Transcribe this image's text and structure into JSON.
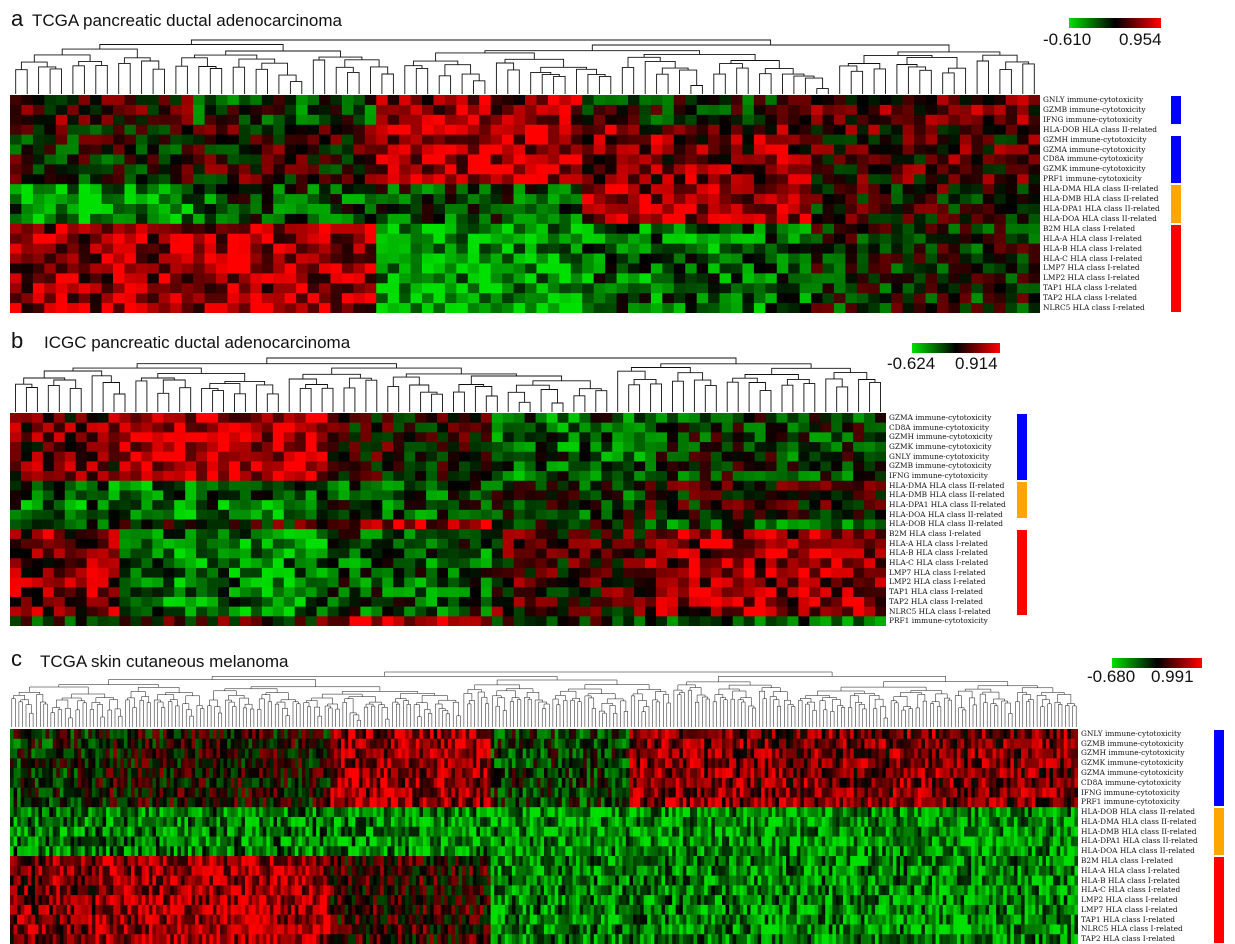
{
  "colors": {
    "low": "#00e000",
    "mid": "#000000",
    "high": "#ff0000",
    "group_cytotoxicity": "#0000ff",
    "group_hla_class_ii": "#ffa500",
    "group_hla_class_i": "#ff0000"
  },
  "chart_data": [
    {
      "type": "heatmap",
      "panel_letter": "a",
      "title": "TCGA pancreatic ductal adenocarcinoma",
      "color_scale": {
        "min": -0.61,
        "max": 0.954,
        "min_label": "-0.610",
        "max_label": "0.954"
      },
      "n_samples": 90,
      "rows": [
        "GNLY immune-cytotoxicity",
        "GZMB immune-cytotoxicity",
        "IFNG immune-cytotoxicity",
        "HLA-DOB HLA class II-related",
        "GZMH immune-cytotoxicity",
        "GZMA immune-cytotoxicity",
        "CD8A immune-cytotoxicity",
        "GZMK immune-cytotoxicity",
        "PRF1 immune-cytotoxicity",
        "HLA-DMA HLA class II-related",
        "HLA-DMB HLA class II-related",
        "HLA-DPA1 HLA class II-related",
        "HLA-DOA HLA class II-related",
        "B2M HLA class I-related",
        "HLA-A HLA class I-related",
        "HLA-B HLA class I-related",
        "HLA-C HLA class I-related",
        "LMP7 HLA class I-related",
        "LMP2 HLA class I-related",
        "TAP1 HLA class I-related",
        "TAP2 HLA class I-related",
        "NLRC5 HLA class I-related"
      ],
      "groups": [
        {
          "category": "immune-cytotoxicity",
          "color_key": "group_cytotoxicity",
          "start_row": 0,
          "end_row": 2
        },
        {
          "category": "immune-cytotoxicity",
          "color_key": "group_cytotoxicity",
          "start_row": 4,
          "end_row": 8
        },
        {
          "category": "HLA class II-related",
          "color_key": "group_hla_class_ii",
          "start_row": 9,
          "end_row": 12
        },
        {
          "category": "HLA class I-related",
          "color_key": "group_hla_class_i",
          "start_row": 13,
          "end_row": 21
        }
      ]
    },
    {
      "type": "heatmap",
      "panel_letter": "b",
      "title": "ICGC pancreatic ductal adenocarcinoma",
      "color_scale": {
        "min": -0.624,
        "max": 0.914,
        "min_label": "-0.624",
        "max_label": "0.914"
      },
      "n_samples": 80,
      "rows": [
        "GZMA immune-cytotoxicity",
        "CD8A immune-cytotoxicity",
        "GZMH immune-cytotoxicity",
        "GZMK immune-cytotoxicity",
        "GNLY immune-cytotoxicity",
        "GZMB immune-cytotoxicity",
        "IFNG immune-cytotoxicity",
        "HLA-DMA HLA class II-related",
        "HLA-DMB HLA class II-related",
        "HLA-DPA1 HLA class II-related",
        "HLA-DOA HLA class II-related",
        "HLA-DOB HLA class II-related",
        "B2M HLA class I-related",
        "HLA-A HLA class I-related",
        "HLA-B HLA class I-related",
        "HLA-C HLA class I-related",
        "LMP7 HLA class I-related",
        "LMP2 HLA class I-related",
        "TAP1 HLA class I-related",
        "TAP2 HLA class I-related",
        "NLRC5 HLA class I-related",
        "PRF1 immune-cytotoxicity"
      ],
      "groups": [
        {
          "category": "immune-cytotoxicity",
          "color_key": "group_cytotoxicity",
          "start_row": 0,
          "end_row": 6
        },
        {
          "category": "HLA class II-related",
          "color_key": "group_hla_class_ii",
          "start_row": 7,
          "end_row": 10
        },
        {
          "category": "HLA class I-related",
          "color_key": "group_hla_class_i",
          "start_row": 12,
          "end_row": 20
        }
      ]
    },
    {
      "type": "heatmap",
      "panel_letter": "c",
      "title": "TCGA skin cutaneous melanoma",
      "color_scale": {
        "min": -0.68,
        "max": 0.991,
        "min_label": "-0.680",
        "max_label": "0.991"
      },
      "n_samples": 300,
      "rows": [
        "GNLY immune-cytotoxicity",
        "GZMB immune-cytotoxicity",
        "GZMH immune-cytotoxicity",
        "GZMK immune-cytotoxicity",
        "GZMA immune-cytotoxicity",
        "CD8A immune-cytotoxicity",
        "IFNG immune-cytotoxicity",
        "PRF1 immune-cytotoxicity",
        "HLA-DOB HLA class II-related",
        "HLA-DMA HLA class II-related",
        "HLA-DMB HLA class II-related",
        "HLA-DPA1 HLA class II-related",
        "HLA-DOA HLA class II-related",
        "B2M HLA class I-related",
        "HLA-A HLA class I-related",
        "HLA-B HLA class I-related",
        "HLA-C HLA class I-related",
        "LMP2 HLA class I-related",
        "LMP7 HLA class I-related",
        "TAP1 HLA class I-related",
        "NLRC5 HLA class I-related",
        "TAP2 HLA class I-related"
      ],
      "groups": [
        {
          "category": "immune-cytotoxicity",
          "color_key": "group_cytotoxicity",
          "start_row": 0,
          "end_row": 7
        },
        {
          "category": "HLA class II-related",
          "color_key": "group_hla_class_ii",
          "start_row": 8,
          "end_row": 12
        },
        {
          "category": "HLA class I-related",
          "color_key": "group_hla_class_i",
          "start_row": 13,
          "end_row": 21
        }
      ]
    }
  ]
}
